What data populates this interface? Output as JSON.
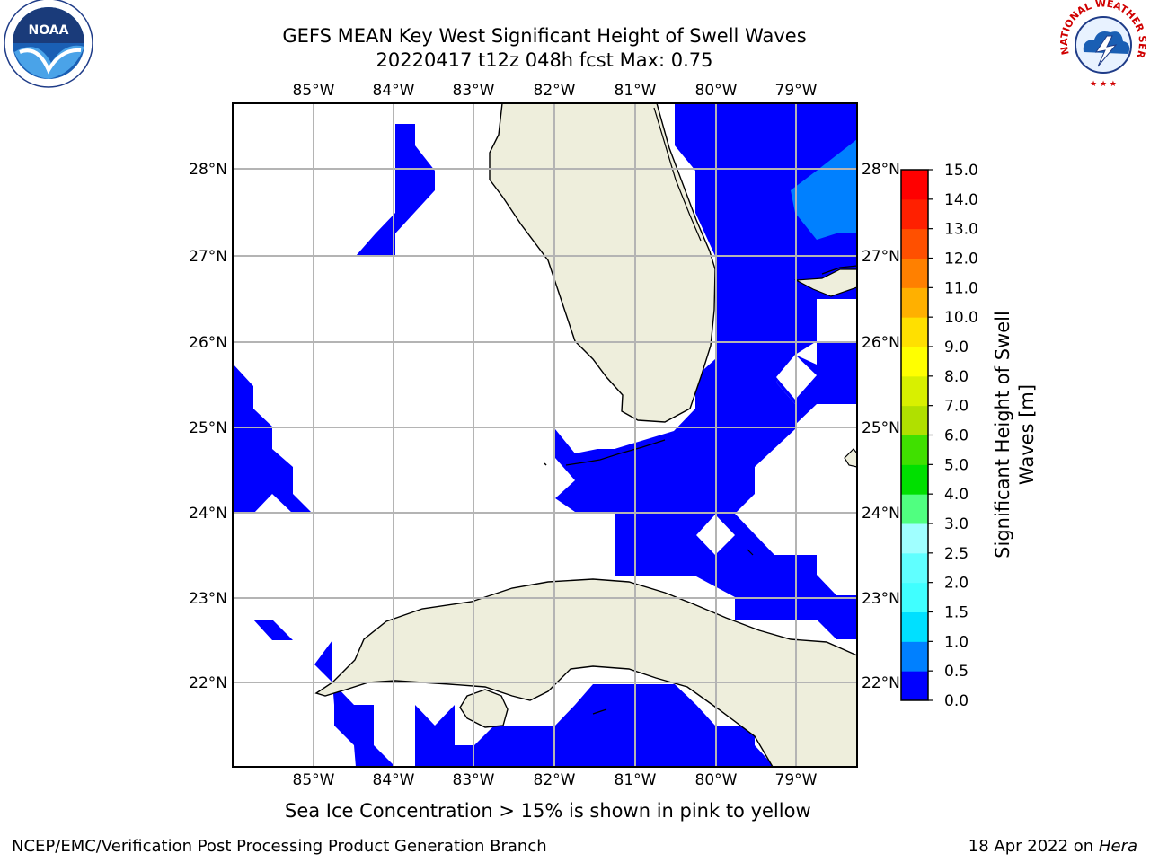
{
  "title": {
    "line1": "GEFS MEAN Key West Significant Height of Swell Waves",
    "line2": "20220417 t12z 048h fcst   Max: 0.75"
  },
  "map": {
    "lon_ticks": [
      "85°W",
      "84°W",
      "83°W",
      "82°W",
      "81°W",
      "80°W",
      "79°W"
    ],
    "lat_ticks": [
      "28°N",
      "27°N",
      "26°N",
      "25°N",
      "24°N",
      "23°N",
      "22°N"
    ],
    "land_color": "#eeeedc",
    "coast_color": "#000000",
    "grid_color": "#b4b4b4"
  },
  "colorbar": {
    "label": "Significant Height of Swell Waves [m]",
    "ticks": [
      "0.0",
      "0.5",
      "1.0",
      "1.5",
      "2.0",
      "2.5",
      "3.0",
      "4.0",
      "5.0",
      "6.0",
      "7.0",
      "8.0",
      "9.0",
      "10.0",
      "11.0",
      "12.0",
      "13.0",
      "14.0",
      "15.0"
    ],
    "colors": [
      "#0000ff",
      "#0080ff",
      "#00e0ff",
      "#40ffff",
      "#60ffff",
      "#a0ffff",
      "#50ff80",
      "#00e000",
      "#40e000",
      "#b0e000",
      "#d8f000",
      "#ffff00",
      "#ffe000",
      "#ffb000",
      "#ff8000",
      "#ff5000",
      "#ff2000",
      "#ff0000"
    ]
  },
  "caption": "Sea Ice Concentration > 15% is shown in pink to yellow",
  "footer": {
    "left": "NCEP/EMC/Verification Post Processing Product Generation Branch",
    "right_prefix": "18 Apr 2022 on ",
    "right_host": "Hera"
  },
  "logos": {
    "noaa_text": "NOAA",
    "nws_text": "NATIONAL WEATHER SERVICE"
  }
}
